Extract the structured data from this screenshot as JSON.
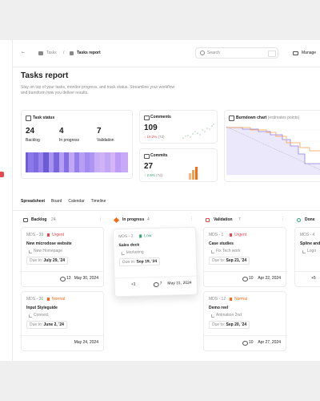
{
  "breadcrumb": [
    "Tasks",
    "Tasks report"
  ],
  "search": "Search",
  "manage": "Manage",
  "header": {
    "title": "Tasks report",
    "description": "Stay on top of your tasks, monitor progress, and track status. Streamline your workflow and transform how you deliver results."
  },
  "task_status": {
    "title": "Task status",
    "stats": [
      {
        "value": 24,
        "label": "Backlog"
      },
      {
        "value": 4,
        "label": "In progress"
      },
      {
        "value": 7,
        "label": "Validation"
      }
    ]
  },
  "comments": {
    "title": "Comments",
    "value": 109,
    "change": "10.2%",
    "period": "(7d)"
  },
  "commits": {
    "title": "Commits",
    "value": 27,
    "change": "2.9%",
    "period": "(7d)"
  },
  "burndown": {
    "title": "Burndown chart",
    "subtitle": "(estimates points)"
  },
  "tabs": [
    "Spreadsheet",
    "Board",
    "Calendar",
    "Timeline"
  ],
  "due_label": "Due to:",
  "columns": [
    {
      "name": "Backlog",
      "count": 24,
      "cards": [
        {
          "id": "MDS - 39",
          "priority": "Urgent",
          "title": "New microdose website",
          "project": "New Homepage",
          "due": "July 29, '24",
          "comments": 13,
          "date": "May 30, 2024"
        },
        {
          "id": "MDS - 36",
          "priority": "Normal",
          "title": "Input Styleguide",
          "project": "Connect",
          "due": "June 2, '24",
          "date": "May 24, 2024"
        }
      ]
    },
    {
      "name": "In progress",
      "count": 4,
      "cards": [
        {
          "id": "MDS - 2",
          "priority": "Low",
          "title": "Sales deck",
          "project": "Marketing",
          "due": "Sep 19, '24",
          "extra": "+3",
          "comments": 7,
          "date": "May 31, 2024"
        }
      ]
    },
    {
      "name": "Validation",
      "count": 7,
      "cards": [
        {
          "id": "MDS - 1",
          "priority": "Urgent",
          "title": "Case studies",
          "project": "Fix Tech work",
          "due": "Sep 21, '24",
          "comments": 10,
          "date": "Apr 22, 2024"
        },
        {
          "id": "MDS - 12",
          "priority": "Normal",
          "title": "Demo reel",
          "project": "Animation 2nd",
          "due": "Sep 20, '24",
          "comments": 10,
          "date": "Apr 27, 2024"
        }
      ]
    },
    {
      "name": "Done",
      "cards": [
        {
          "id": "MDS - 4",
          "title": "Spline and",
          "project": "Logo",
          "extra": "+5"
        }
      ]
    }
  ]
}
